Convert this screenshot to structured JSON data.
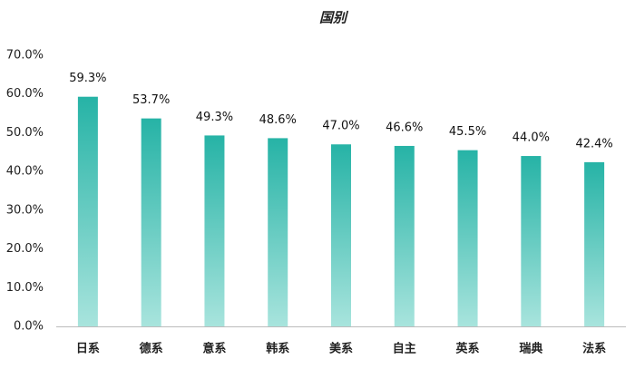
{
  "chart_data": {
    "type": "bar",
    "title": "国别",
    "categories": [
      "日系",
      "德系",
      "意系",
      "韩系",
      "美系",
      "自主",
      "英系",
      "瑞典",
      "法系"
    ],
    "values": [
      59.3,
      53.7,
      49.3,
      48.6,
      47.0,
      46.6,
      45.5,
      44.0,
      42.4
    ],
    "value_labels": [
      "59.3%",
      "53.7%",
      "49.3%",
      "48.6%",
      "47.0%",
      "46.6%",
      "45.5%",
      "44.0%",
      "42.4%"
    ],
    "color": "#26b3a6",
    "ylim": [
      0,
      70
    ],
    "yticks": [
      {
        "value": 0,
        "label": "0.0%"
      },
      {
        "value": 10,
        "label": "10.0%"
      },
      {
        "value": 20,
        "label": "20.0%"
      },
      {
        "value": 30,
        "label": "30.0%"
      },
      {
        "value": 40,
        "label": "40.0%"
      },
      {
        "value": 50,
        "label": "50.0%"
      },
      {
        "value": 60,
        "label": "60.0%"
      },
      {
        "value": 70,
        "label": "70.0%"
      }
    ],
    "grid": false
  }
}
